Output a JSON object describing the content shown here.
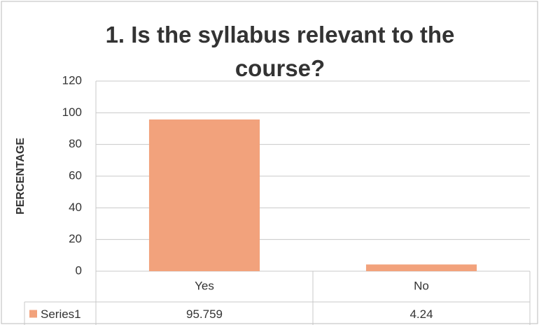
{
  "chart_data": {
    "type": "bar",
    "title": "1. Is the syllabus relevant to the course?",
    "y_label": "PERCENTAGE",
    "categories": [
      "Yes",
      "No"
    ],
    "series": [
      {
        "name": "Series1",
        "color": "#f2a27c",
        "values": [
          95.759,
          4.24
        ]
      }
    ],
    "ylim": [
      0,
      120
    ],
    "yticks": [
      0,
      20,
      40,
      60,
      80,
      100,
      120
    ],
    "grid": true,
    "data_table": true
  }
}
